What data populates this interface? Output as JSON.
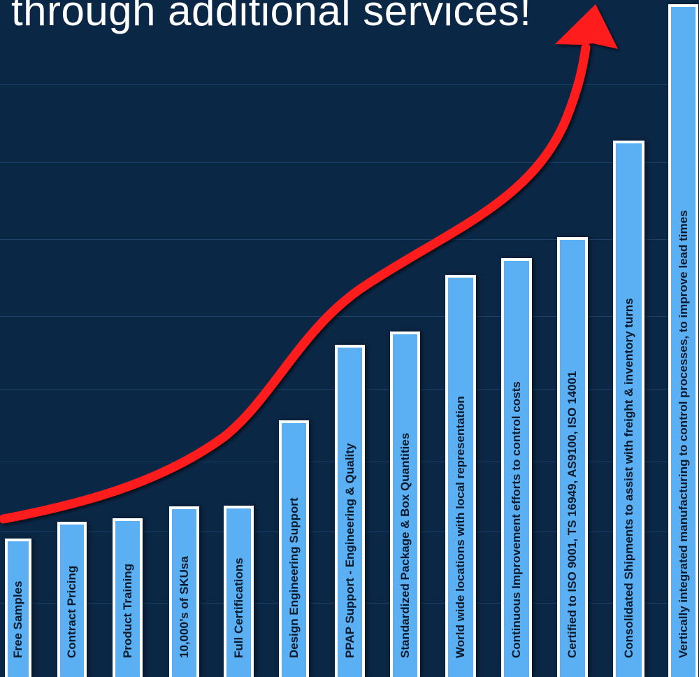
{
  "headline": "through additional services!",
  "colors": {
    "background": "#0b2746",
    "bar_fill": "#5ab0f2",
    "bar_border": "#ffffff",
    "arrow": "#ff1a1a"
  },
  "bars": [
    {
      "label": "Free Samples",
      "level": 1
    },
    {
      "label": "Contract Pricing",
      "level": 2
    },
    {
      "label": "Product Training",
      "level": 3
    },
    {
      "label": "10,000’s of SKUsa",
      "level": 4
    },
    {
      "label": "Full Certifications",
      "level": 5
    },
    {
      "label": "Design Engineering Support",
      "level": 6
    },
    {
      "label": "PPAP Support - Engineering & Quality",
      "level": 7
    },
    {
      "label": "Standardized Package & Box Quantities",
      "level": 8
    },
    {
      "label": "World wide locations with local representation",
      "level": 9
    },
    {
      "label": "Continuous Improvement efforts to control costs",
      "level": 10
    },
    {
      "label": "Certified to ISO 9001, TS 16949, AS9100, ISO 14001",
      "level": 11
    },
    {
      "label": "Consolidated Shipments to assist with freight & inventory turns",
      "level": 12
    },
    {
      "label": "Vertically integrated manufacturing to control processes, to improve lead times",
      "level": 13
    }
  ]
}
